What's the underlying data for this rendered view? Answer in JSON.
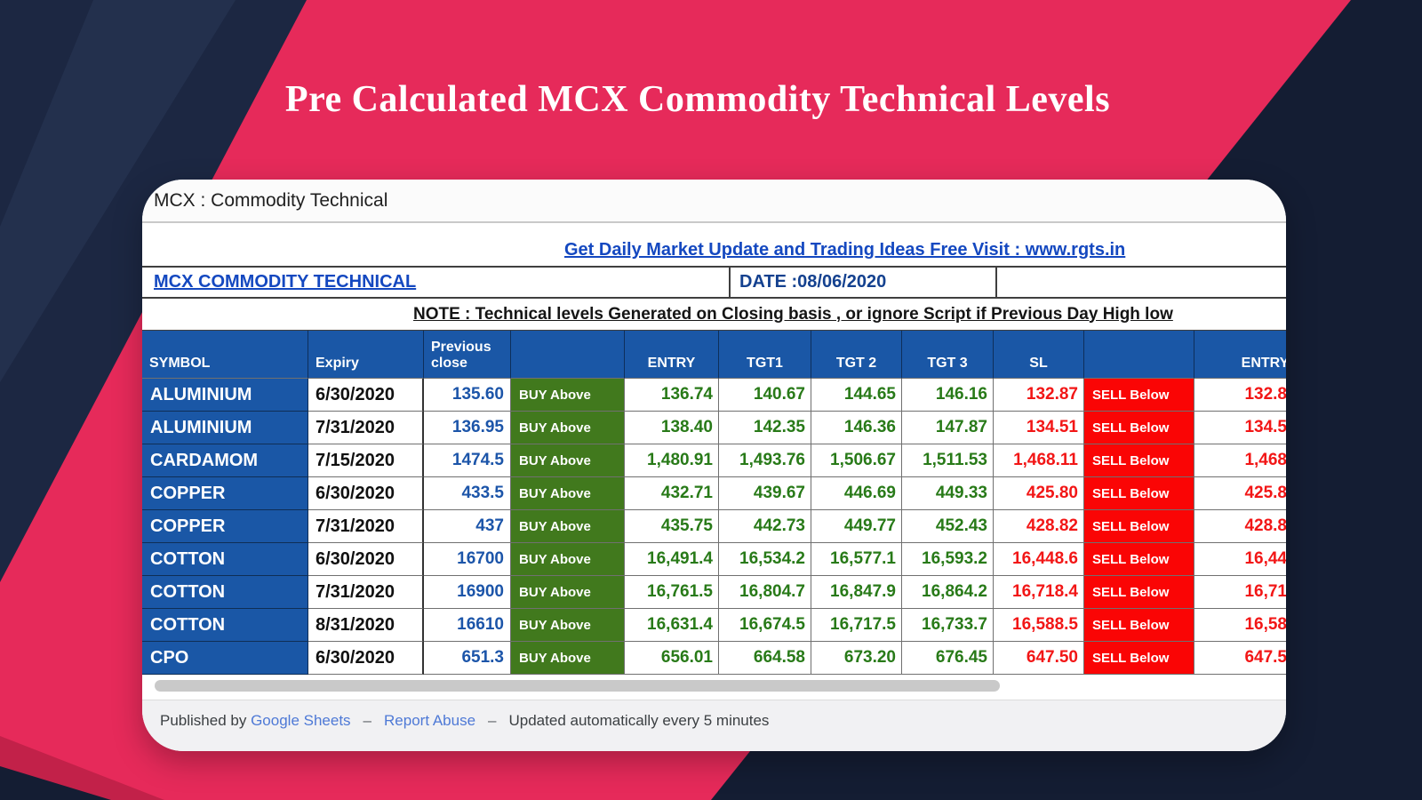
{
  "hero": {
    "title": "Pre Calculated MCX Commodity Technical Levels"
  },
  "sheet": {
    "doc_title": "MCX : Commodity Technical",
    "promo_link": "Get Daily Market Update and Trading Ideas Free Visit : www.rgts.in",
    "sheet_link": "MCX COMMODITY TECHNICAL",
    "date_label": "DATE :08/06/2020",
    "note": "NOTE : Technical levels Generated on Closing basis , or ignore Script if Previous Day High low"
  },
  "table": {
    "columns": [
      "SYMBOL",
      "Expiry",
      "Previous close",
      "",
      "ENTRY",
      "TGT1",
      "TGT 2",
      "TGT 3",
      "SL",
      "",
      "ENTRY"
    ],
    "buy_label": "BUY Above",
    "sell_label": "SELL Below",
    "rows": [
      {
        "symbol": "ALUMINIUM",
        "expiry": "6/30/2020",
        "prev_close": "135.60",
        "entry": "136.74",
        "tgt1": "140.67",
        "tgt2": "144.65",
        "tgt3": "146.16",
        "sl": "132.87",
        "sell_entry": "132.8"
      },
      {
        "symbol": "ALUMINIUM",
        "expiry": "7/31/2020",
        "prev_close": "136.95",
        "entry": "138.40",
        "tgt1": "142.35",
        "tgt2": "146.36",
        "tgt3": "147.87",
        "sl": "134.51",
        "sell_entry": "134.5"
      },
      {
        "symbol": "CARDAMOM",
        "expiry": "7/15/2020",
        "prev_close": "1474.5",
        "entry": "1,480.91",
        "tgt1": "1,493.76",
        "tgt2": "1,506.67",
        "tgt3": "1,511.53",
        "sl": "1,468.11",
        "sell_entry": "1,468"
      },
      {
        "symbol": "COPPER",
        "expiry": "6/30/2020",
        "prev_close": "433.5",
        "entry": "432.71",
        "tgt1": "439.67",
        "tgt2": "446.69",
        "tgt3": "449.33",
        "sl": "425.80",
        "sell_entry": "425.8"
      },
      {
        "symbol": "COPPER",
        "expiry": "7/31/2020",
        "prev_close": "437",
        "entry": "435.75",
        "tgt1": "442.73",
        "tgt2": "449.77",
        "tgt3": "452.43",
        "sl": "428.82",
        "sell_entry": "428.8"
      },
      {
        "symbol": "COTTON",
        "expiry": "6/30/2020",
        "prev_close": "16700",
        "entry": "16,491.4",
        "tgt1": "16,534.2",
        "tgt2": "16,577.1",
        "tgt3": "16,593.2",
        "sl": "16,448.6",
        "sell_entry": "16,44"
      },
      {
        "symbol": "COTTON",
        "expiry": "7/31/2020",
        "prev_close": "16900",
        "entry": "16,761.5",
        "tgt1": "16,804.7",
        "tgt2": "16,847.9",
        "tgt3": "16,864.2",
        "sl": "16,718.4",
        "sell_entry": "16,71"
      },
      {
        "symbol": "COTTON",
        "expiry": "8/31/2020",
        "prev_close": "16610",
        "entry": "16,631.4",
        "tgt1": "16,674.5",
        "tgt2": "16,717.5",
        "tgt3": "16,733.7",
        "sl": "16,588.5",
        "sell_entry": "16,58"
      },
      {
        "symbol": "CPO",
        "expiry": "6/30/2020",
        "prev_close": "651.3",
        "entry": "656.01",
        "tgt1": "664.58",
        "tgt2": "673.20",
        "tgt3": "676.45",
        "sl": "647.50",
        "sell_entry": "647.5"
      }
    ]
  },
  "footer": {
    "published_by": "Published by ",
    "google_sheets": "Google Sheets",
    "report_abuse": "Report Abuse",
    "updated": "Updated automatically every 5 minutes",
    "separator": "–"
  },
  "colors": {
    "pink": "#E62A5A",
    "navy": "#141D33",
    "navy_light": "#1C2742",
    "header_blue": "#1A57A6",
    "buy_green": "#41791D",
    "sell_red": "#FA0505",
    "green_text": "#287A18",
    "red_text": "#F21616",
    "prev_blue": "#1C55A9",
    "link_blue": "#1448C0",
    "footer_link": "#4E79D6"
  }
}
